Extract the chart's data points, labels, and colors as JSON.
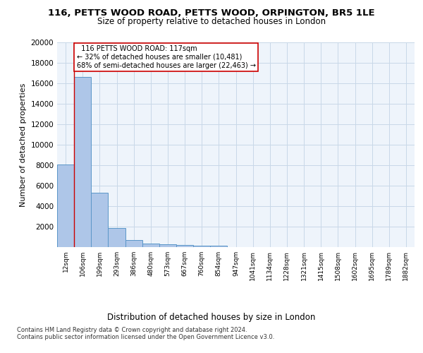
{
  "title_line1": "116, PETTS WOOD ROAD, PETTS WOOD, ORPINGTON, BR5 1LE",
  "title_line2": "Size of property relative to detached houses in London",
  "xlabel": "Distribution of detached houses by size in London",
  "ylabel": "Number of detached properties",
  "categories": [
    "12sqm",
    "106sqm",
    "199sqm",
    "293sqm",
    "386sqm",
    "480sqm",
    "573sqm",
    "667sqm",
    "760sqm",
    "854sqm",
    "947sqm",
    "1041sqm",
    "1134sqm",
    "1228sqm",
    "1321sqm",
    "1415sqm",
    "1508sqm",
    "1602sqm",
    "1695sqm",
    "1789sqm",
    "1882sqm"
  ],
  "values": [
    8100,
    16600,
    5300,
    1850,
    700,
    350,
    270,
    210,
    170,
    130,
    0,
    0,
    0,
    0,
    0,
    0,
    0,
    0,
    0,
    0,
    0
  ],
  "bar_color": "#aec6e8",
  "bar_edge_color": "#5a96c8",
  "grid_color": "#c8d8e8",
  "background_color": "#eef4fb",
  "property_line_idx": 1,
  "property_line_label": "116 PETTS WOOD ROAD: 117sqm",
  "smaller_pct": "32%",
  "smaller_n": "10,481",
  "larger_pct": "68%",
  "larger_n": "22,463",
  "annotation_box_color": "#cc0000",
  "ylim": [
    0,
    20000
  ],
  "yticks": [
    0,
    2000,
    4000,
    6000,
    8000,
    10000,
    12000,
    14000,
    16000,
    18000,
    20000
  ],
  "footnote_line1": "Contains HM Land Registry data © Crown copyright and database right 2024.",
  "footnote_line2": "Contains public sector information licensed under the Open Government Licence v3.0."
}
